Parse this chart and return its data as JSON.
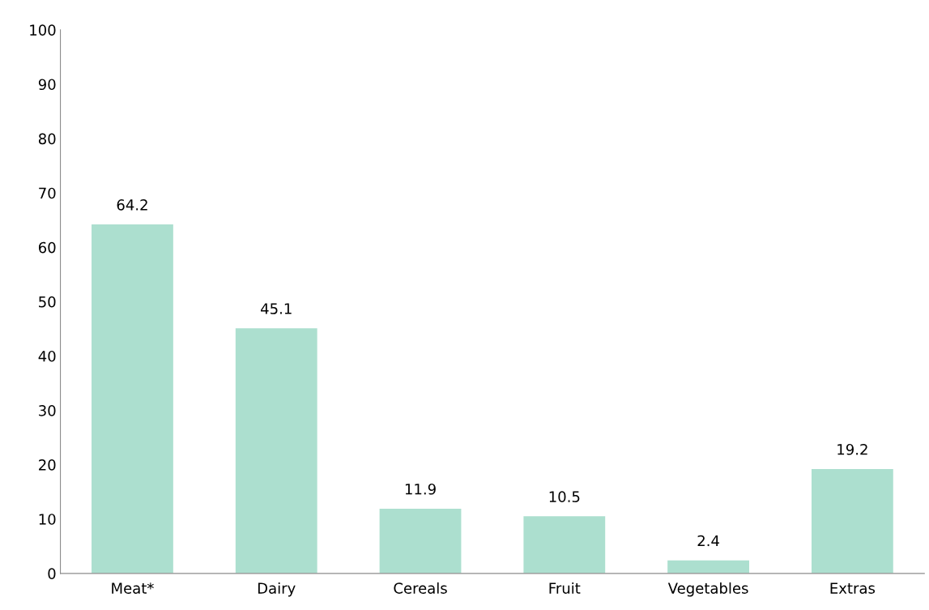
{
  "chart_data": {
    "type": "bar",
    "categories": [
      "Meat*",
      "Dairy",
      "Cereals",
      "Fruit",
      "Vegetables",
      "Extras"
    ],
    "values": [
      64.2,
      45.1,
      11.9,
      10.5,
      2.4,
      19.2
    ],
    "color": "#acdfcf",
    "ylim": [
      0,
      100
    ],
    "yticks": [
      0,
      10,
      20,
      30,
      40,
      50,
      60,
      70,
      80,
      90,
      100
    ],
    "data_labels": true,
    "grid": false
  }
}
